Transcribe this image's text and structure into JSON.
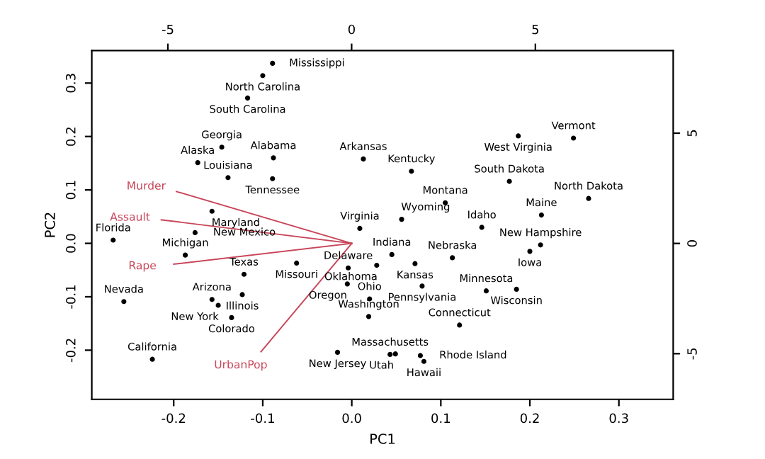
{
  "chart_data": {
    "type": "scatter",
    "xlabel": "PC1",
    "ylabel": "PC2",
    "xlim": [
      -0.292,
      0.361
    ],
    "ylim": [
      -0.292,
      0.361
    ],
    "xticks": [
      {
        "value": -0.2,
        "label": "-0.2"
      },
      {
        "value": -0.1,
        "label": "-0.1"
      },
      {
        "value": 0,
        "label": "0.0"
      },
      0.1,
      0.2,
      0.3
    ],
    "yticks": [
      {
        "value": -0.2,
        "label": "-0.2"
      },
      {
        "value": -0.1,
        "label": "-0.1"
      },
      {
        "value": 0,
        "label": "0.0"
      },
      0.1,
      0.2,
      0.3
    ],
    "x2lim": [
      -7.07,
      8.75
    ],
    "x2ticks": [
      {
        "value": -5,
        "label": "-5"
      },
      0,
      5
    ],
    "y2lim": [
      -7.07,
      8.75
    ],
    "y2ticks": [
      {
        "value": -5,
        "label": "-5"
      },
      0,
      5
    ],
    "grid": false,
    "legend": false,
    "series": [
      {
        "marker": "circle",
        "color": "#000000",
        "x": [
          -0.088,
          -0.173,
          -0.157,
          0.013,
          -0.224,
          -0.135,
          0.121,
          -0.004,
          -0.268,
          -0.146,
          0.081,
          0.146,
          -0.123,
          0.045,
          0.2,
          0.071,
          0.067,
          -0.139,
          0.213,
          -0.157,
          0.043,
          -0.187,
          0.151,
          -0.089,
          -0.062,
          0.105,
          0.113,
          -0.256,
          0.212,
          -0.016,
          -0.176,
          -0.15,
          -0.1,
          0.266,
          0.02,
          0.028,
          -0.005,
          0.079,
          0.077,
          -0.117,
          0.177,
          -0.089,
          -0.121,
          0.049,
          0.249,
          0.009,
          0.019,
          0.187,
          0.185,
          0.056
        ],
        "values": [
          0.16,
          0.151,
          -0.105,
          0.158,
          -0.217,
          -0.139,
          -0.153,
          -0.046,
          0.006,
          0.18,
          -0.221,
          0.03,
          -0.096,
          -0.021,
          -0.015,
          -0.038,
          0.135,
          0.123,
          0.053,
          0.06,
          -0.208,
          -0.022,
          -0.089,
          0.337,
          -0.037,
          0.076,
          -0.027,
          -0.109,
          -0.003,
          -0.204,
          0.02,
          -0.116,
          0.314,
          0.084,
          -0.104,
          -0.041,
          -0.076,
          -0.08,
          -0.21,
          0.272,
          0.116,
          0.121,
          -0.058,
          -0.207,
          0.197,
          0.028,
          -0.137,
          0.201,
          -0.086,
          0.045
        ],
        "value_labels": [
          "Alabama",
          "Alaska",
          "Arizona",
          "Arkansas",
          "California",
          "Colorado",
          "Connecticut",
          "Delaware",
          "Florida",
          "Georgia",
          "Hawaii",
          "Idaho",
          "Illinois",
          "Indiana",
          "Iowa",
          "Kansas",
          "Kentucky",
          "Louisiana",
          "Maine",
          "Maryland",
          "Massachusetts",
          "Michigan",
          "Minnesota",
          "Mississippi",
          "Missouri",
          "Montana",
          "Nebraska",
          "Nevada",
          "New Hampshire",
          "New Jersey",
          "New Mexico",
          "New York",
          "North Carolina",
          "North Dakota",
          "Ohio",
          "Oklahoma",
          "Oregon",
          "Pennsylvania",
          "Rhode Island",
          "South Carolina",
          "South Dakota",
          "Tennessee",
          "Texas",
          "Utah",
          "Vermont",
          "Virginia",
          "Washington",
          "West Virginia",
          "Wisconsin",
          "Wyoming"
        ]
      },
      {
        "type": "line",
        "name": "Murder",
        "color": "#c8465a",
        "x": [
          0,
          -0.197
        ],
        "values": [
          0,
          0.097
        ]
      },
      {
        "type": "line",
        "name": "Assault",
        "color": "#c8465a",
        "x": [
          0,
          -0.214
        ],
        "values": [
          0,
          0.044
        ]
      },
      {
        "type": "line",
        "name": "UrbanPop",
        "color": "#c8465a",
        "x": [
          0,
          -0.102
        ],
        "values": [
          0,
          -0.203
        ]
      },
      {
        "type": "line",
        "name": "Rape",
        "color": "#c8465a",
        "x": [
          0,
          -0.2
        ],
        "values": [
          0,
          -0.039
        ]
      }
    ]
  }
}
